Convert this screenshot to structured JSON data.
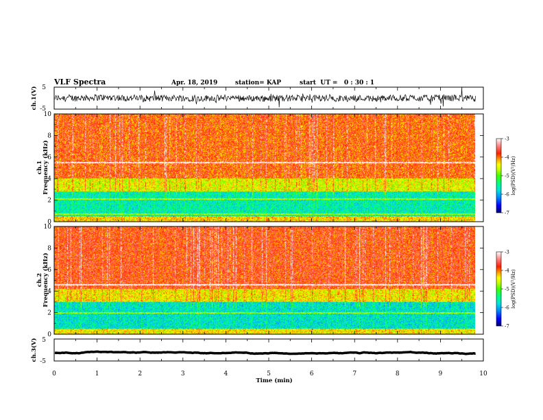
{
  "header": {
    "title": "VLF Spectra",
    "date": "Apr. 18, 2019",
    "station": "station= KAP",
    "start": "start  UT =   0 : 30 : 1"
  },
  "chart_data": [
    {
      "type": "line",
      "panel": "ch1-waveform",
      "ylabel": "ch.1(V)",
      "xlim": [
        0,
        10
      ],
      "ylim": [
        -5,
        5
      ],
      "yticks": [
        "5",
        "-5"
      ],
      "x_data_range": [
        0,
        9.83
      ],
      "level_approx": 0,
      "noise_amplitude_approx": 1.5
    },
    {
      "type": "heatmap",
      "panel": "ch1-spectrogram",
      "ylabel": "ch.1 Frequency (kHz)",
      "xlim": [
        0,
        10
      ],
      "ylim": [
        0,
        10
      ],
      "yticks": [
        "0",
        "2",
        "4",
        "6",
        "8",
        "10"
      ],
      "x_data_range": [
        0,
        9.83
      ],
      "colorbar": {
        "label": "log(PSD)(V²/Hz)",
        "ticks": [
          "-3",
          "-4",
          "-5",
          "-6",
          "-7"
        ],
        "range": [
          -7,
          -3
        ]
      },
      "bands_logpsd_approx": [
        {
          "freq_khz": [
            0,
            0.5
          ],
          "logpsd": -4.3
        },
        {
          "freq_khz": [
            0.5,
            2.8
          ],
          "logpsd": -5.6
        },
        {
          "freq_khz": [
            2.8,
            4.0
          ],
          "logpsd": -4.5
        },
        {
          "freq_khz": [
            4.0,
            10
          ],
          "logpsd": -3.9
        }
      ],
      "lines_khz": [
        2.1,
        5.5,
        0.7
      ]
    },
    {
      "type": "heatmap",
      "panel": "ch2-spectrogram",
      "ylabel": "ch.2 Frequency (kHz)",
      "xlim": [
        0,
        10
      ],
      "ylim": [
        0,
        10
      ],
      "yticks": [
        "0",
        "2",
        "4",
        "6",
        "8",
        "10"
      ],
      "x_data_range": [
        0,
        9.83
      ],
      "colorbar": {
        "label": "log(PSD)(V²/Hz)",
        "ticks": [
          "-3",
          "-4",
          "-5",
          "-6",
          "-7"
        ],
        "range": [
          -7,
          -3
        ]
      },
      "bands_logpsd_approx": [
        {
          "freq_khz": [
            0,
            0.5
          ],
          "logpsd": -4.4
        },
        {
          "freq_khz": [
            0.5,
            3.0
          ],
          "logpsd": -5.7
        },
        {
          "freq_khz": [
            3.0,
            4.2
          ],
          "logpsd": -4.4
        },
        {
          "freq_khz": [
            4.2,
            10
          ],
          "logpsd": -3.8
        }
      ],
      "lines_khz": [
        2.0,
        4.6
      ]
    },
    {
      "type": "line",
      "panel": "ch3-waveform",
      "ylabel": "ch.3(V)",
      "xlim": [
        0,
        10
      ],
      "ylim": [
        -5,
        5
      ],
      "yticks": [
        "5",
        "-5"
      ],
      "x_data_range": [
        0,
        9.83
      ],
      "level_approx": -1.3,
      "noise_amplitude_approx": 0.1
    }
  ],
  "x_axis": {
    "label": "Time (min)",
    "ticks": [
      "0",
      "1",
      "2",
      "3",
      "4",
      "5",
      "6",
      "7",
      "8",
      "9",
      "10"
    ],
    "range": [
      0,
      10
    ]
  },
  "colors": {
    "colormap": [
      "#000070",
      "#0000ff",
      "#0080ff",
      "#00e0e0",
      "#00ff80",
      "#40ff00",
      "#c0ff00",
      "#ffff00",
      "#ffa000",
      "#ff2000",
      "#ff8080",
      "#ffffff"
    ]
  }
}
